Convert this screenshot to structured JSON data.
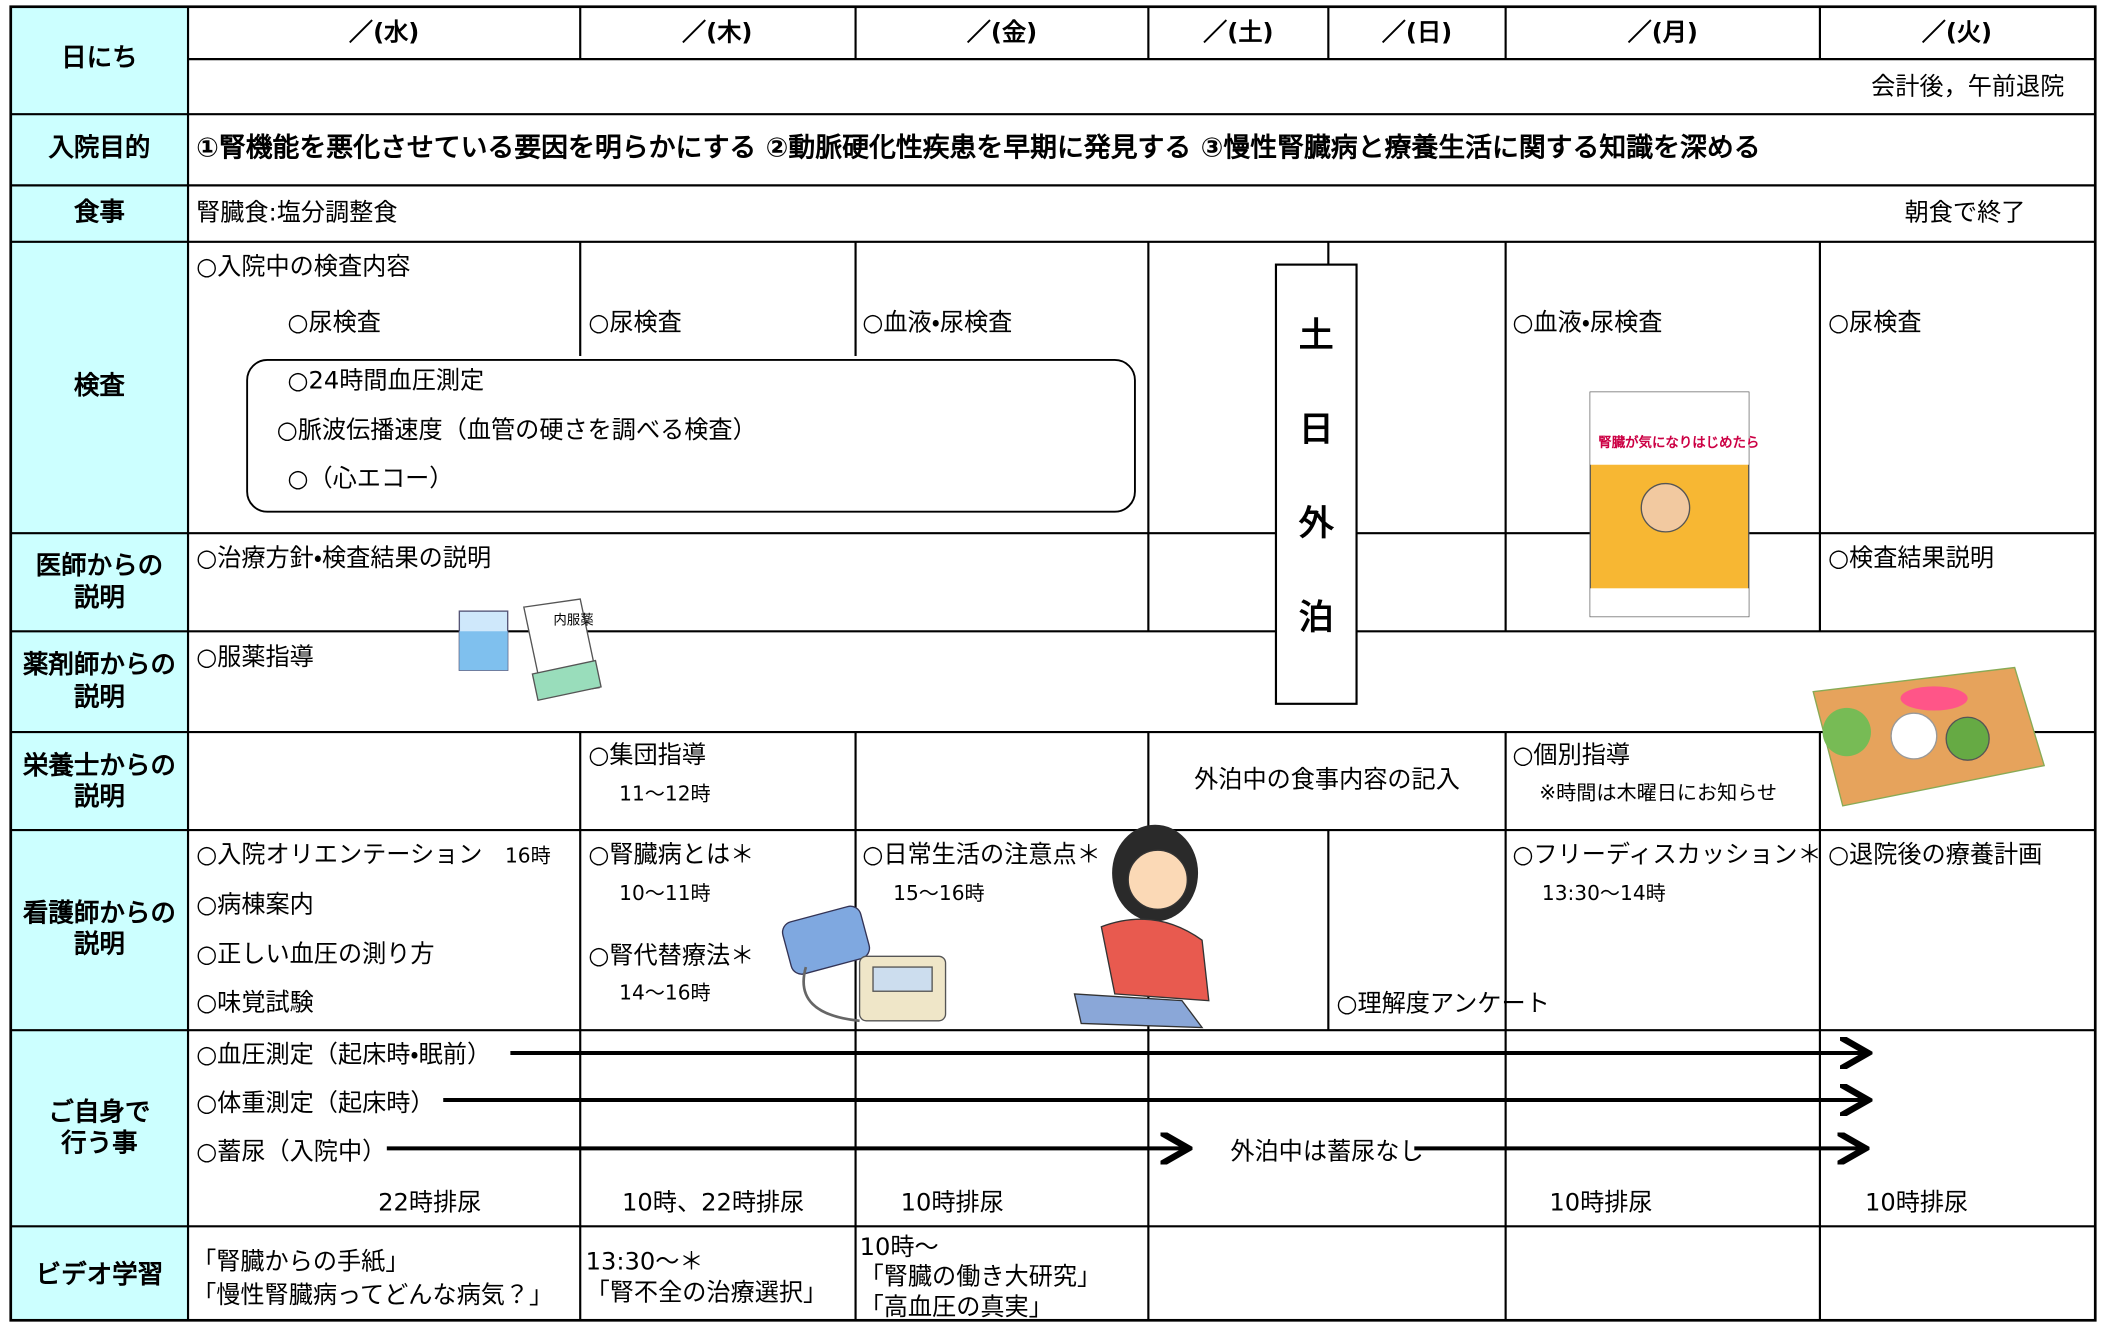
{
  "header": {
    "label": "日にち",
    "days": [
      "／(水)",
      "／(木)",
      "／(金)",
      "／(土)",
      "／(日)",
      "／(月)",
      "／(火)"
    ],
    "discharge": "会計後，午前退院"
  },
  "purpose": {
    "label": "入院目的",
    "text": "①腎機能を悪化させている要因を明らかにする ②動脈硬化性疾患を早期に発見する ③慢性腎臓病と療養生活に関する知識を深める"
  },
  "meal": {
    "label": "食事",
    "text": "腎臓食:塩分調整食",
    "end": "朝食で終了"
  },
  "tests": {
    "label": "検査",
    "intro": "○入院中の検査内容",
    "wed": "○尿検査",
    "thu": "○尿検査",
    "fri": "○血液・尿検査",
    "mon": "○血液・尿検査",
    "tue": "○尿検査",
    "box": [
      "○24時間血圧測定",
      "○脈波伝播速度（血管の硬さを調べる検査）",
      "○（心エコー）"
    ]
  },
  "weekend": [
    "土",
    "日",
    "外",
    "泊"
  ],
  "doctor": {
    "label": [
      "医師からの",
      "説明"
    ],
    "wed": "○治療方針・検査結果の説明",
    "tue": "○検査結果説明"
  },
  "pharmacist": {
    "label": [
      "薬剤師からの",
      "説明"
    ],
    "wed": "○服薬指導",
    "medicine_label": "内服薬"
  },
  "dietitian": {
    "label": [
      "栄養士からの",
      "説明"
    ],
    "thu": [
      "○集団指導",
      "11～12時"
    ],
    "weekend": "外泊中の食事内容の記入",
    "mon": [
      "○個別指導",
      "※時間は木曜日にお知らせ"
    ]
  },
  "nurse": {
    "label": [
      "看護師からの",
      "説明"
    ],
    "wed": [
      "○入院オリエンテーション",
      "16時",
      "○病棟案内",
      "○正しい血圧の測り方",
      "○味覚試験"
    ],
    "thu": [
      "○腎臓病とは＊",
      "10～11時",
      "○腎代替療法＊",
      "14～16時"
    ],
    "fri": [
      "○日常生活の注意点＊",
      "15～16時"
    ],
    "sun": "○理解度アンケート",
    "mon": [
      "○フリーディスカッション＊",
      "13:30～14時"
    ],
    "tue": "○退院後の療養計画"
  },
  "self": {
    "label": [
      "ご自身で",
      "行う事"
    ],
    "items": [
      "○血圧測定（起床時・眠前）",
      "○体重測定（起床時）",
      "○蓄尿（入院中）"
    ],
    "weekend_note": "外泊中は蓄尿なし",
    "urine": [
      "22時排尿",
      "10時、22時排尿",
      "10時排尿",
      "10時排尿",
      "10時排尿"
    ]
  },
  "video": {
    "label": "ビデオ学習",
    "wed": [
      "「腎臓からの手紙」",
      "「慢性腎臓病ってどんな病気？」"
    ],
    "thu": [
      "13:30～＊",
      "「腎不全の治療選択」"
    ],
    "fri": [
      "10時～",
      "「腎臓の働き大研究」",
      "「高血圧の真実」"
    ]
  },
  "book_title": "腎臓が気になりはじめたら"
}
